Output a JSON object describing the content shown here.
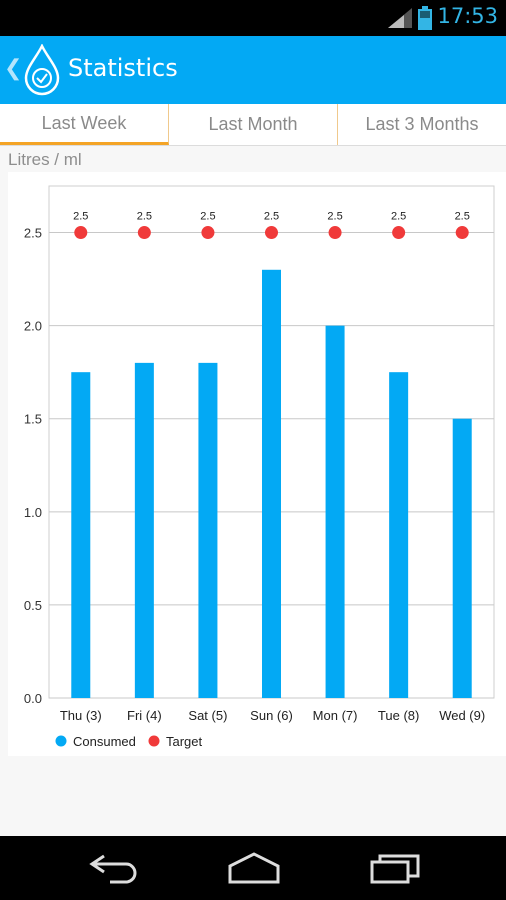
{
  "status_bar": {
    "time": "17:53"
  },
  "app_bar": {
    "title": "Statistics"
  },
  "tabs": [
    {
      "label": "Last Week",
      "active": true
    },
    {
      "label": "Last Month",
      "active": false
    },
    {
      "label": "Last 3 Months",
      "active": false
    }
  ],
  "unit_label": "Litres / ml",
  "colors": {
    "accent": "#03a9f4",
    "bar": "#03a9f4",
    "target": "#f03a3a",
    "tab_indicator": "#f4a426"
  },
  "icons": {
    "back": "chevron-left-icon",
    "logo": "water-drop-clock-icon",
    "nav": [
      "back-arrow-icon",
      "home-icon",
      "recent-apps-icon"
    ]
  },
  "chart_data": {
    "type": "bar",
    "categories": [
      "Thu (3)",
      "Fri (4)",
      "Sat (5)",
      "Sun (6)",
      "Mon (7)",
      "Tue (8)",
      "Wed (9)"
    ],
    "series": [
      {
        "name": "Consumed",
        "type": "bar",
        "values": [
          1.75,
          1.8,
          1.8,
          2.3,
          2.0,
          1.75,
          1.5
        ]
      },
      {
        "name": "Target",
        "type": "scatter",
        "values": [
          2.5,
          2.5,
          2.5,
          2.5,
          2.5,
          2.5,
          2.5
        ],
        "labels": [
          "2.5",
          "2.5",
          "2.5",
          "2.5",
          "2.5",
          "2.5",
          "2.5"
        ]
      }
    ],
    "yticks": [
      "0.0",
      "0.5",
      "1.0",
      "1.5",
      "2.0",
      "2.5"
    ],
    "ylim": [
      0,
      2.75
    ],
    "grid": true,
    "legend": "bottom-left",
    "ylabel": "Litres / ml"
  }
}
